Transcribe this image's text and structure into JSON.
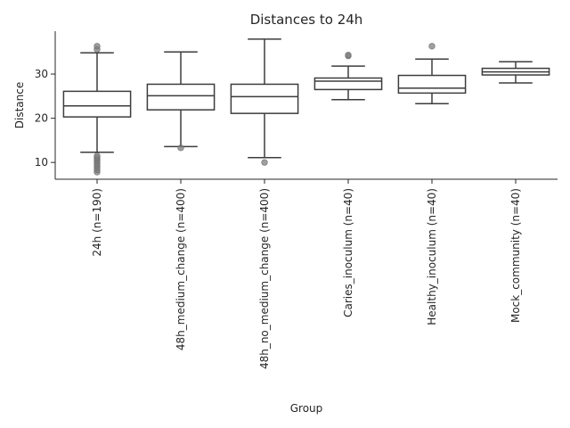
{
  "chart_data": {
    "type": "box",
    "title": "Distances to 24h",
    "xlabel": "Group",
    "ylabel": "Distance",
    "ylim": [
      6.2,
      39.7
    ],
    "yticks": [
      10,
      20,
      30
    ],
    "grid": false,
    "colors": {
      "box_edge": "#3d3d3d",
      "box_fill": "#ffffff",
      "outlier": "#7f7f7f",
      "text": "#262626"
    },
    "groups": [
      {
        "label": "24h (n=190)",
        "whisker_low": 12.3,
        "q1": 20.3,
        "median": 22.8,
        "q3": 26.1,
        "whisker_high": 34.8,
        "outliers": [
          7.8,
          8.3,
          8.8,
          9.3,
          9.8,
          10.3,
          10.7,
          11.1,
          11.5,
          35.6,
          36.3
        ]
      },
      {
        "label": "48h_medium_change (n=400)",
        "whisker_low": 13.6,
        "q1": 21.9,
        "median": 25.1,
        "q3": 27.7,
        "whisker_high": 35.0,
        "outliers": [
          13.3
        ]
      },
      {
        "label": "48h_no_medium_change (n=400)",
        "whisker_low": 11.1,
        "q1": 21.1,
        "median": 24.9,
        "q3": 27.7,
        "whisker_high": 37.9,
        "outliers": [
          10.0
        ]
      },
      {
        "label": "Caries_inoculum (n=40)",
        "whisker_low": 24.2,
        "q1": 26.5,
        "median": 28.4,
        "q3": 29.1,
        "whisker_high": 31.8,
        "outliers": [
          34.1,
          34.3
        ]
      },
      {
        "label": "Healthy_inoculum (n=40)",
        "whisker_low": 23.3,
        "q1": 25.7,
        "median": 26.8,
        "q3": 29.7,
        "whisker_high": 33.4,
        "outliers": [
          36.3
        ]
      },
      {
        "label": "Mock_community (n=40)",
        "whisker_low": 28.0,
        "q1": 29.8,
        "median": 30.5,
        "q3": 31.3,
        "whisker_high": 32.8,
        "outliers": []
      }
    ]
  }
}
